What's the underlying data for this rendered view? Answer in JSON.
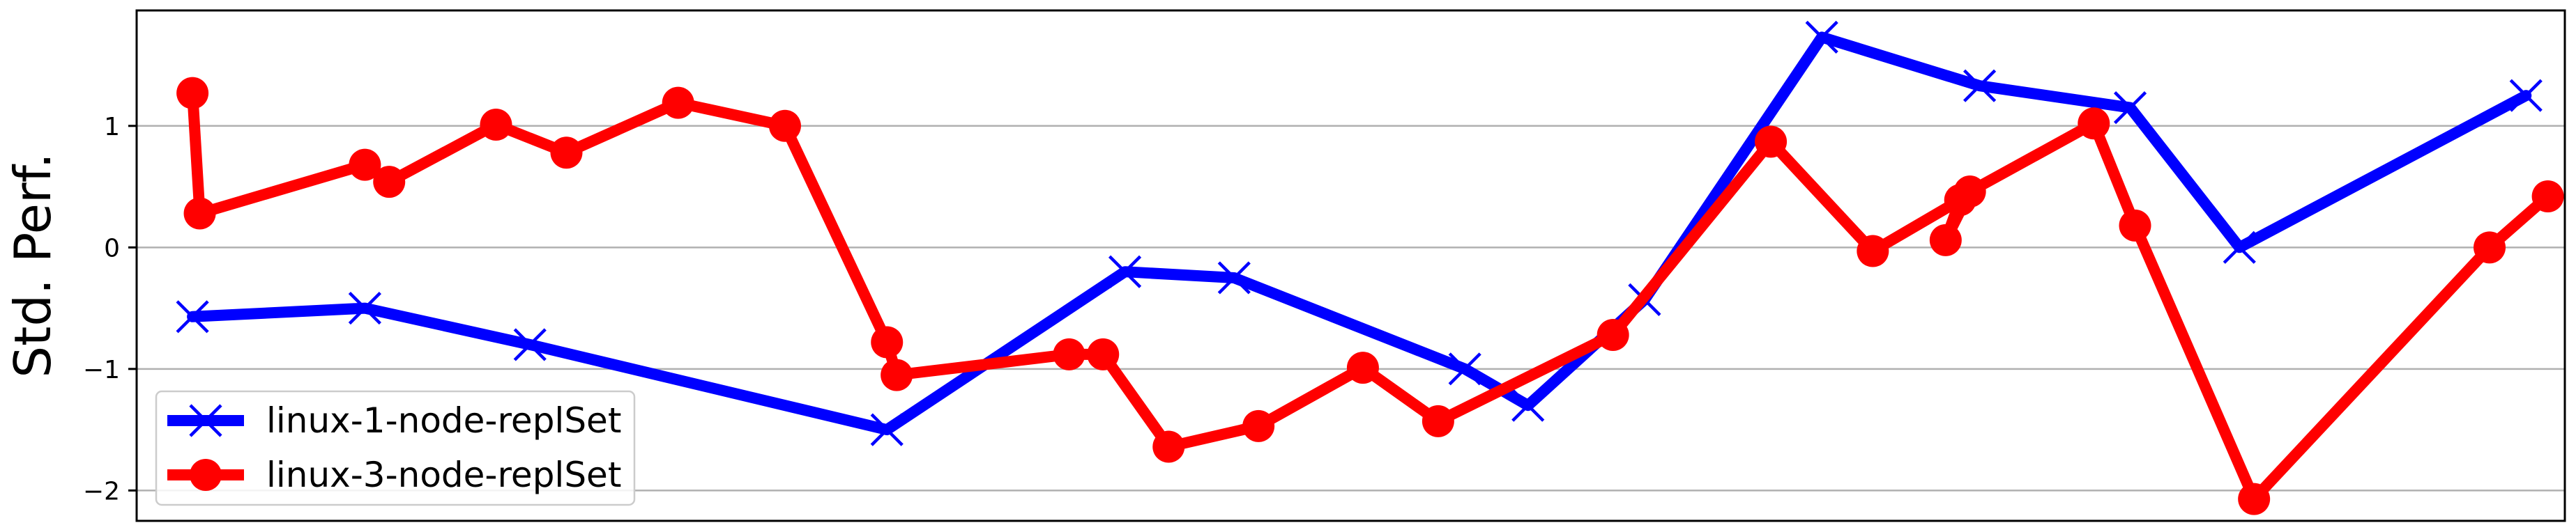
{
  "chart_data": {
    "type": "line",
    "title": "",
    "xlabel": "",
    "ylabel": "Std. Perf.",
    "ylim": [
      -2.25,
      1.95
    ],
    "xlim": [
      0,
      100
    ],
    "yticks": [
      -2,
      -1,
      0,
      1
    ],
    "ytick_labels": [
      "−2",
      "−1",
      "0",
      "1"
    ],
    "grid": "y",
    "legend": "bottom-left",
    "series": [
      {
        "name": "linux-1-node-replSet",
        "color": "#0000ff",
        "marker": "x",
        "x": [
          2.3,
          9.4,
          16.2,
          30.9,
          40.7,
          45.2,
          54.7,
          57.3,
          62.1,
          69.4,
          75.9,
          82.1,
          86.6,
          98.4
        ],
        "y": [
          -0.57,
          -0.5,
          -0.8,
          -1.5,
          -0.2,
          -0.25,
          -1.0,
          -1.3,
          -0.43,
          1.73,
          1.33,
          1.15,
          0.0,
          1.25
        ]
      },
      {
        "name": "linux-3-node-replSet",
        "color": "#ff0000",
        "marker": "o",
        "x": [
          2.3,
          2.6,
          9.4,
          10.4,
          14.8,
          17.7,
          22.3,
          26.7,
          30.9,
          31.3,
          38.4,
          39.8,
          42.5,
          46.2,
          50.5,
          53.6,
          60.8,
          67.3,
          71.5,
          75.1,
          74.5,
          75.5,
          80.6,
          82.3,
          87.2,
          96.9,
          99.3
        ],
        "y": [
          1.27,
          0.28,
          0.68,
          0.54,
          1.01,
          0.78,
          1.19,
          1.0,
          -0.78,
          -1.05,
          -0.88,
          -0.88,
          -1.64,
          -1.47,
          -0.99,
          -1.43,
          -0.72,
          0.87,
          -0.03,
          0.39,
          0.06,
          0.46,
          1.02,
          0.18,
          -2.07,
          0.0,
          0.42
        ]
      }
    ]
  }
}
